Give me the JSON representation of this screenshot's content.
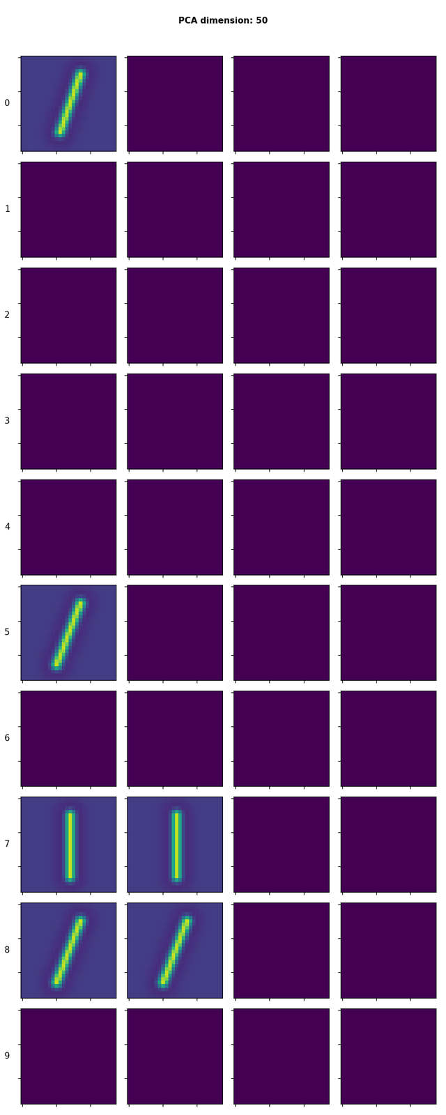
{
  "chart_data": {
    "type": "image_grid",
    "title": "PCA dimension: 50",
    "row_labels": [
      "0",
      "1",
      "2",
      "3",
      "4",
      "5",
      "6",
      "7",
      "8",
      "9"
    ],
    "xlim": [
      -0.5,
      27.5
    ],
    "ylim": [
      27.5,
      -0.5
    ],
    "xticks": [
      0,
      10,
      20
    ],
    "yticks": [
      0,
      10,
      20
    ],
    "tick_labels": false,
    "images": [
      [
        {
          "stroke": [
            [
              17,
              5
            ],
            [
              11,
              22
            ]
          ]
        },
        null,
        null,
        null
      ],
      [
        null,
        null,
        null,
        null
      ],
      [
        null,
        null,
        null,
        null
      ],
      [
        null,
        null,
        null,
        null
      ],
      [
        null,
        null,
        null,
        null
      ],
      [
        {
          "stroke": [
            [
              17,
              5
            ],
            [
              10,
              23
            ]
          ]
        },
        null,
        null,
        null
      ],
      [
        null,
        null,
        null,
        null
      ],
      [
        {
          "stroke": [
            [
              14,
              5
            ],
            [
              14,
              23
            ]
          ]
        },
        {
          "stroke": [
            [
              14,
              5
            ],
            [
              14,
              23
            ]
          ]
        },
        null,
        null
      ],
      [
        {
          "stroke": [
            [
              17,
              5
            ],
            [
              10,
              23
            ]
          ]
        },
        {
          "stroke": [
            [
              17,
              5
            ],
            [
              10,
              23
            ]
          ]
        },
        null,
        null
      ],
      [
        null,
        null,
        null,
        null
      ]
    ]
  }
}
